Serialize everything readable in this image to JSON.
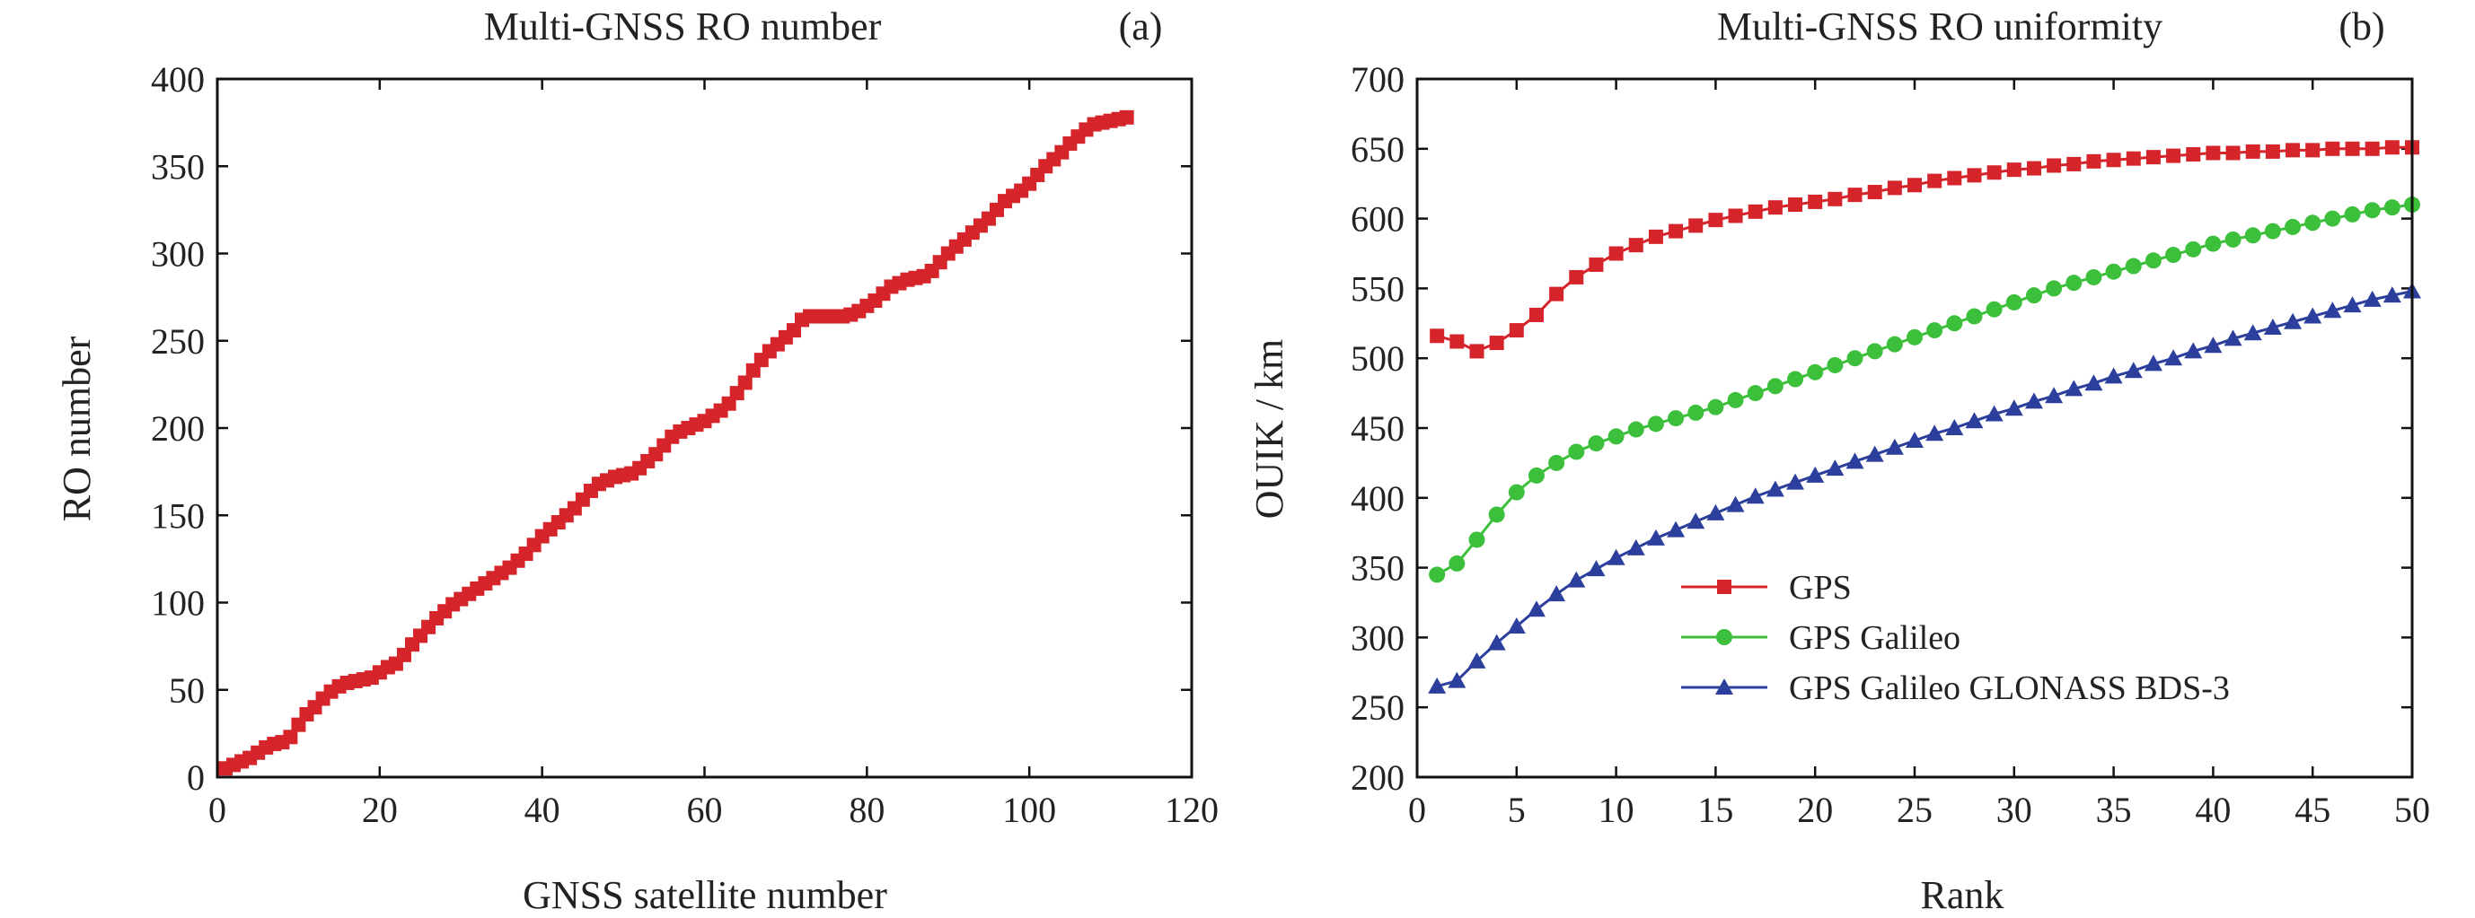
{
  "colors": {
    "red": "#d6242b",
    "green": "#3cbf3a",
    "blue": "#2c3f9c"
  },
  "chart_data": [
    {
      "type": "line",
      "title": "Multi-GNSS RO number",
      "panel_label": "(a)",
      "xlabel": "GNSS satellite number",
      "ylabel": "RO number",
      "xlim": [
        0,
        120
      ],
      "ylim": [
        0,
        400
      ],
      "xticks": [
        0,
        20,
        40,
        60,
        80,
        100,
        120
      ],
      "yticks": [
        0,
        50,
        100,
        150,
        200,
        250,
        300,
        350,
        400
      ],
      "marker": "square",
      "series": [
        {
          "values": [
            [
              1,
              5
            ],
            [
              2,
              7
            ],
            [
              3,
              9
            ],
            [
              4,
              11
            ],
            [
              5,
              14
            ],
            [
              6,
              17
            ],
            [
              7,
              19
            ],
            [
              8,
              20
            ],
            [
              9,
              23
            ],
            [
              10,
              30
            ],
            [
              11,
              36
            ],
            [
              12,
              40
            ],
            [
              13,
              45
            ],
            [
              14,
              49
            ],
            [
              15,
              52
            ],
            [
              16,
              54
            ],
            [
              17,
              55
            ],
            [
              18,
              56
            ],
            [
              19,
              57
            ],
            [
              20,
              60
            ],
            [
              21,
              63
            ],
            [
              22,
              65
            ],
            [
              23,
              70
            ],
            [
              24,
              76
            ],
            [
              25,
              81
            ],
            [
              26,
              86
            ],
            [
              27,
              91
            ],
            [
              28,
              95
            ],
            [
              29,
              99
            ],
            [
              30,
              102
            ],
            [
              31,
              105
            ],
            [
              32,
              108
            ],
            [
              33,
              111
            ],
            [
              34,
              114
            ],
            [
              35,
              117
            ],
            [
              36,
              120
            ],
            [
              37,
              124
            ],
            [
              38,
              128
            ],
            [
              39,
              133
            ],
            [
              40,
              138
            ],
            [
              41,
              142
            ],
            [
              42,
              146
            ],
            [
              43,
              150
            ],
            [
              44,
              154
            ],
            [
              45,
              159
            ],
            [
              46,
              164
            ],
            [
              47,
              168
            ],
            [
              48,
              170
            ],
            [
              49,
              172
            ],
            [
              50,
              173
            ],
            [
              51,
              174
            ],
            [
              52,
              177
            ],
            [
              53,
              181
            ],
            [
              54,
              185
            ],
            [
              55,
              190
            ],
            [
              56,
              195
            ],
            [
              57,
              198
            ],
            [
              58,
              200
            ],
            [
              59,
              202
            ],
            [
              60,
              204
            ],
            [
              61,
              207
            ],
            [
              62,
              210
            ],
            [
              63,
              214
            ],
            [
              64,
              220
            ],
            [
              65,
              226
            ],
            [
              66,
              233
            ],
            [
              67,
              239
            ],
            [
              68,
              244
            ],
            [
              69,
              248
            ],
            [
              70,
              252
            ],
            [
              71,
              256
            ],
            [
              72,
              262
            ],
            [
              73,
              264
            ],
            [
              74,
              264
            ],
            [
              75,
              264
            ],
            [
              76,
              264
            ],
            [
              77,
              264
            ],
            [
              78,
              265
            ],
            [
              79,
              267
            ],
            [
              80,
              270
            ],
            [
              81,
              273
            ],
            [
              82,
              277
            ],
            [
              83,
              281
            ],
            [
              84,
              283
            ],
            [
              85,
              285
            ],
            [
              86,
              286
            ],
            [
              87,
              287
            ],
            [
              88,
              290
            ],
            [
              89,
              295
            ],
            [
              90,
              300
            ],
            [
              91,
              304
            ],
            [
              92,
              308
            ],
            [
              93,
              312
            ],
            [
              94,
              316
            ],
            [
              95,
              320
            ],
            [
              96,
              325
            ],
            [
              97,
              330
            ],
            [
              98,
              333
            ],
            [
              99,
              336
            ],
            [
              100,
              340
            ],
            [
              101,
              345
            ],
            [
              102,
              350
            ],
            [
              103,
              354
            ],
            [
              104,
              358
            ],
            [
              105,
              363
            ],
            [
              106,
              367
            ],
            [
              107,
              371
            ],
            [
              108,
              374
            ],
            [
              109,
              375
            ],
            [
              110,
              376
            ],
            [
              111,
              377
            ],
            [
              112,
              378
            ]
          ]
        }
      ]
    },
    {
      "type": "line",
      "title": "Multi-GNSS RO uniformity",
      "panel_label": "(b)",
      "xlabel": "Rank",
      "ylabel": "OUIK / km",
      "xlim": [
        0,
        50
      ],
      "ylim": [
        200,
        700
      ],
      "xticks": [
        0,
        5,
        10,
        15,
        20,
        25,
        30,
        35,
        40,
        45,
        50
      ],
      "yticks": [
        200,
        250,
        300,
        350,
        400,
        450,
        500,
        550,
        600,
        650,
        700
      ],
      "legend_position": "center-left",
      "series": [
        {
          "name": "GPS",
          "marker": "square",
          "color": "#d6242b",
          "values": [
            516,
            512,
            505,
            511,
            520,
            531,
            546,
            558,
            567,
            575,
            581,
            587,
            591,
            595,
            599,
            602,
            605,
            608,
            610,
            612,
            614,
            617,
            619,
            622,
            624,
            627,
            629,
            631,
            633,
            635,
            636,
            638,
            639,
            641,
            642,
            643,
            644,
            645,
            646,
            647,
            647,
            648,
            648,
            649,
            649,
            650,
            650,
            650,
            651,
            651
          ]
        },
        {
          "name": "GPS Galileo",
          "marker": "circle",
          "color": "#3cbf3a",
          "values": [
            345,
            353,
            370,
            388,
            404,
            416,
            425,
            433,
            439,
            444,
            449,
            453,
            457,
            461,
            465,
            470,
            475,
            480,
            485,
            490,
            495,
            500,
            505,
            510,
            515,
            520,
            525,
            530,
            535,
            540,
            545,
            550,
            554,
            558,
            562,
            566,
            570,
            574,
            578,
            582,
            585,
            588,
            591,
            594,
            597,
            600,
            603,
            606,
            608,
            610
          ]
        },
        {
          "name": "GPS Galileo GLONASS BDS-3",
          "marker": "triangle",
          "color": "#2c3f9c",
          "values": [
            265,
            269,
            283,
            296,
            308,
            320,
            331,
            341,
            349,
            357,
            364,
            371,
            377,
            383,
            389,
            395,
            401,
            406,
            411,
            416,
            421,
            426,
            431,
            436,
            441,
            446,
            450,
            455,
            460,
            464,
            469,
            473,
            478,
            482,
            487,
            491,
            496,
            500,
            505,
            509,
            514,
            518,
            522,
            526,
            530,
            534,
            538,
            542,
            545,
            548
          ]
        }
      ]
    }
  ]
}
